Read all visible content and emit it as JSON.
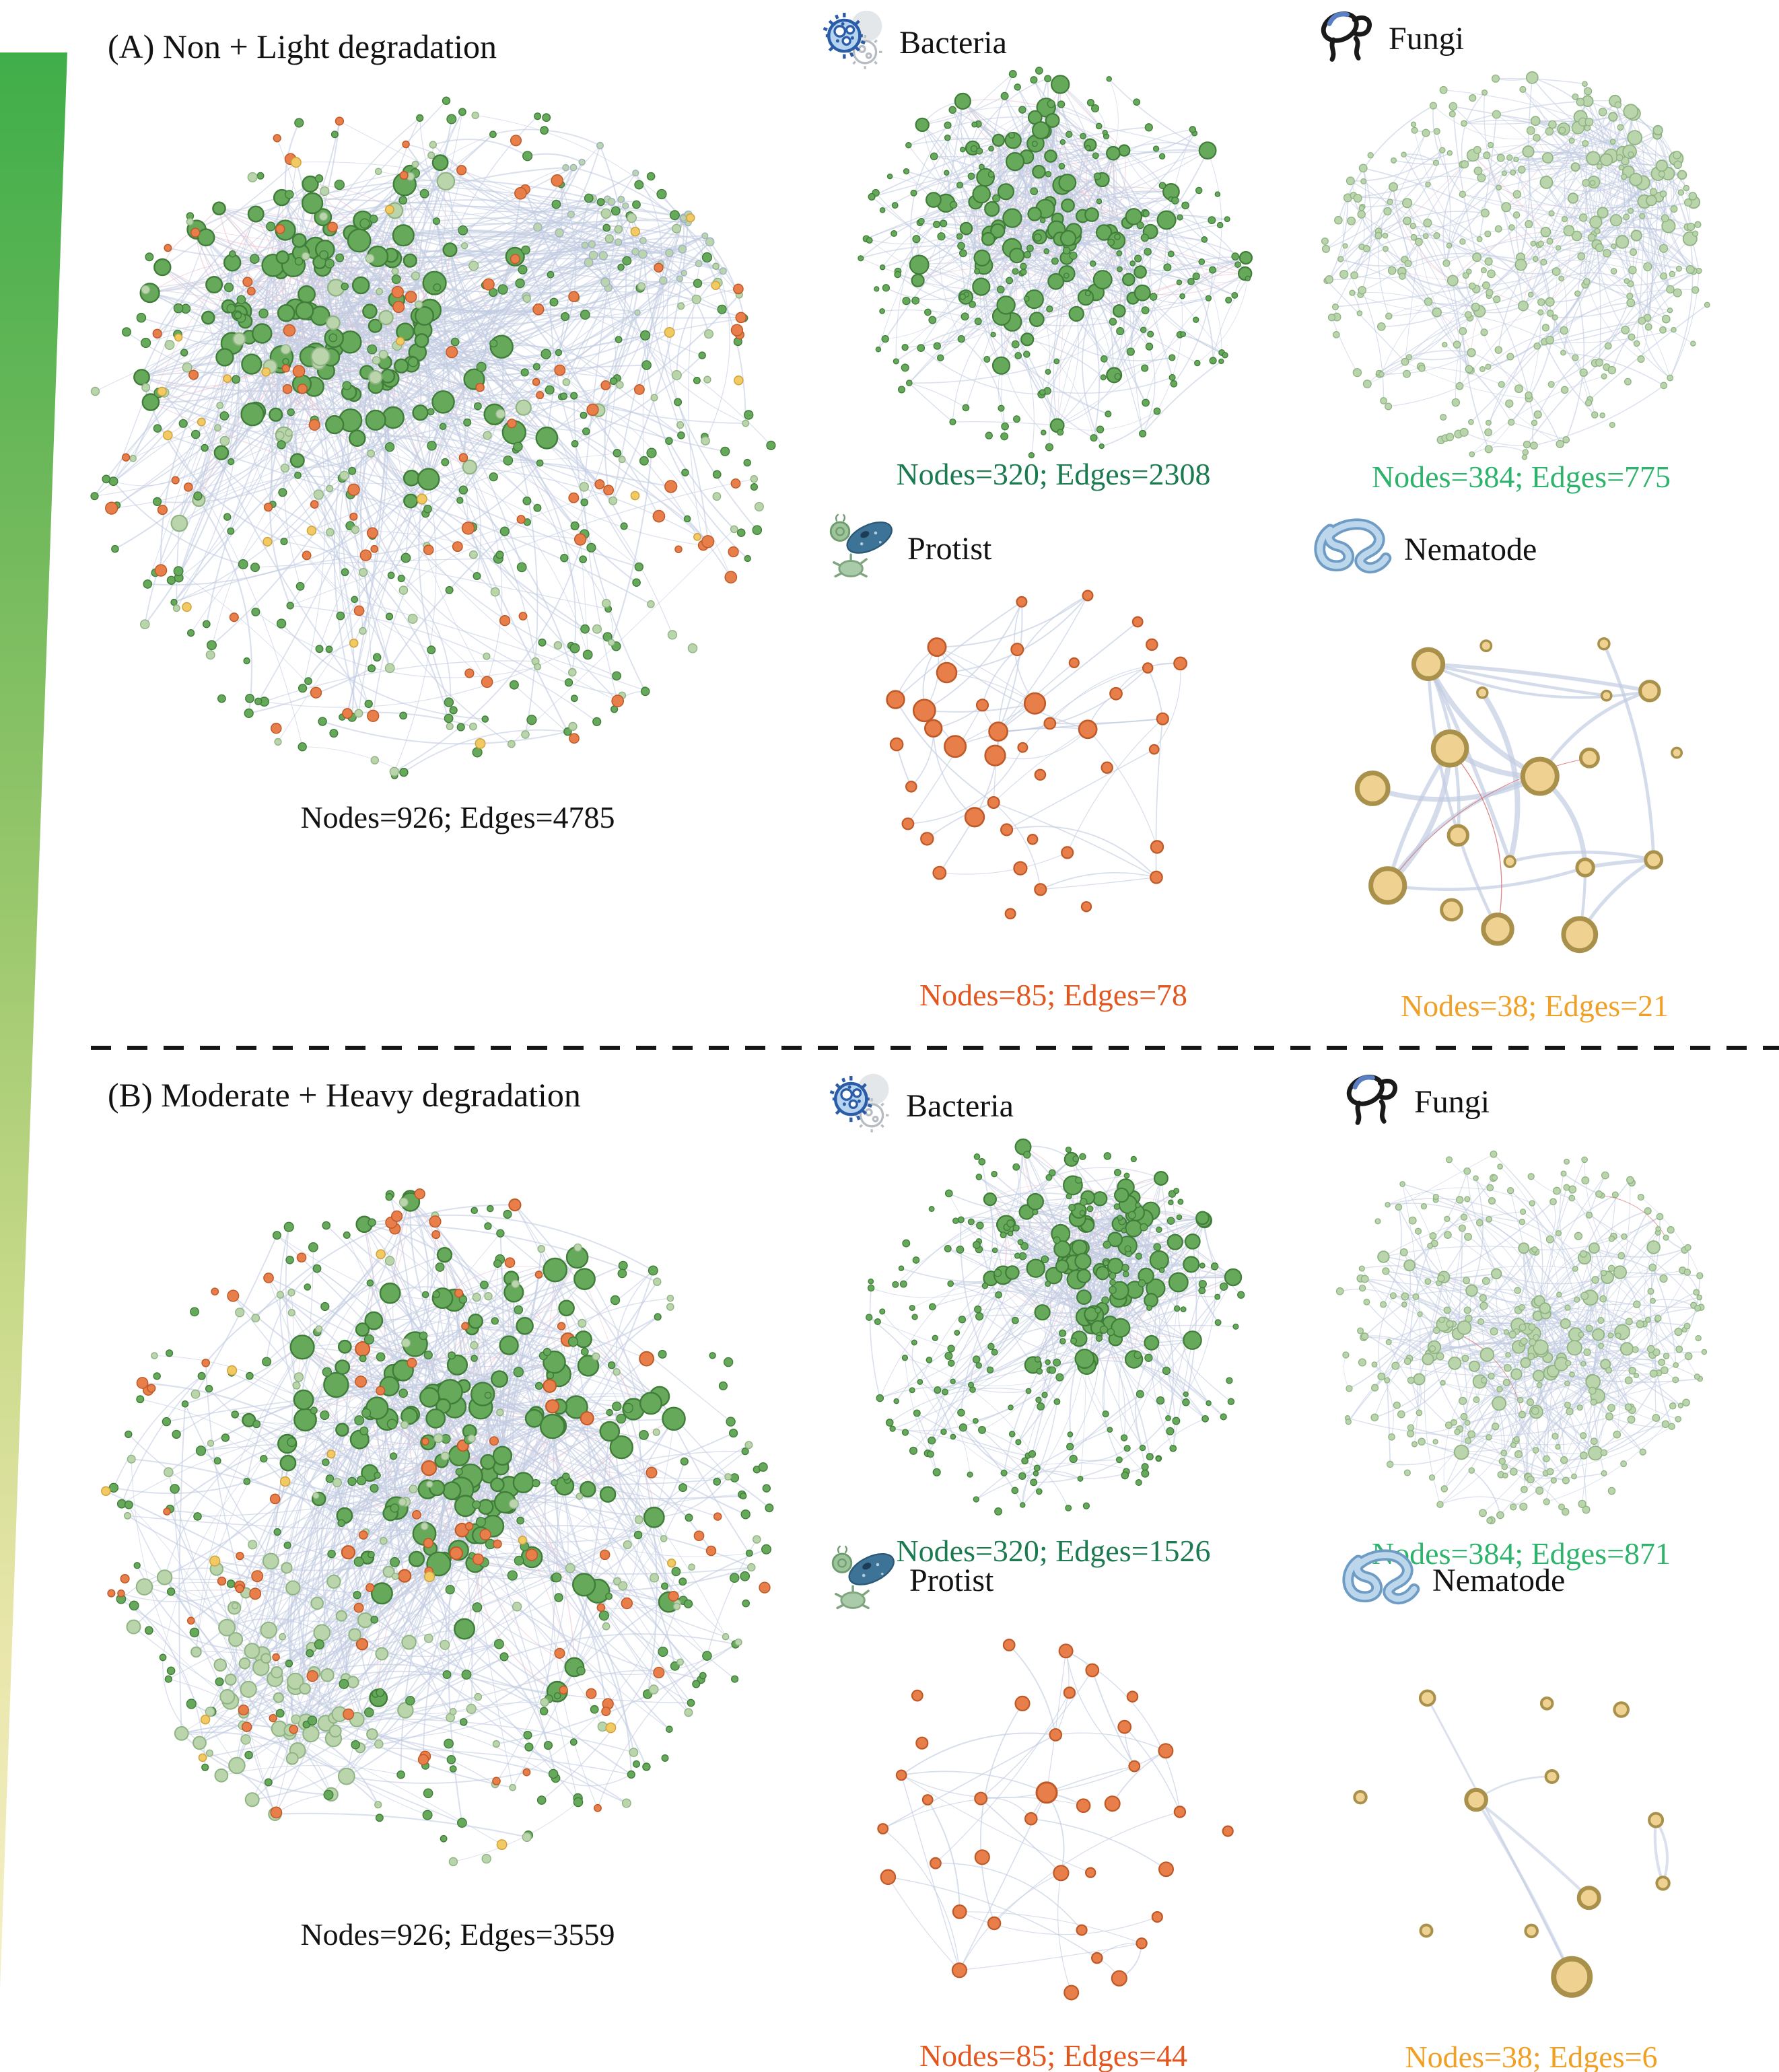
{
  "legend": {
    "meaning": "degradation-gradient",
    "top_color": "#3fae49",
    "bottom_color": "#f4efc6"
  },
  "palette": {
    "dark_green_fill": "#66a95b",
    "dark_green_stroke": "#3f7d38",
    "light_green_fill": "#bad5ac",
    "light_green_stroke": "#8fb383",
    "gray_green_stroke": "#9fb0c4",
    "orange_fill": "#e87e49",
    "orange_stroke": "#bf5a28",
    "yellow_fill": "#f2ca63",
    "yellow_stroke": "#cfa23c",
    "gold_fill": "#efd192",
    "gold_stroke": "#a9914c",
    "edge_positive": "#c2cce1",
    "edge_negative_pink": "#e9b7c9",
    "edge_negative_red": "#d97070"
  },
  "panel_a": {
    "title": "(A) Non + Light degradation",
    "main": {
      "caption": "Nodes=926; Edges=4785",
      "nodes": 926,
      "edges": 4785,
      "caption_color": "#111111"
    },
    "bacteria": {
      "label": "Bacteria",
      "caption": "Nodes=320; Edges=2308",
      "nodes": 320,
      "edges": 2308,
      "caption_color": "#1b7a4f"
    },
    "fungi": {
      "label": "Fungi",
      "caption": "Nodes=384; Edges=775",
      "nodes": 384,
      "edges": 775,
      "caption_color": "#2fb36c"
    },
    "protist": {
      "label": "Protist",
      "caption": "Nodes=85; Edges=78",
      "nodes": 85,
      "edges": 78,
      "caption_color": "#e2561f"
    },
    "nematode": {
      "label": "Nematode",
      "caption": "Nodes=38; Edges=21",
      "nodes": 38,
      "edges": 21,
      "caption_color": "#f0a125"
    }
  },
  "panel_b": {
    "title": "(B) Moderate + Heavy degradation",
    "main": {
      "caption": "Nodes=926; Edges=3559",
      "nodes": 926,
      "edges": 3559,
      "caption_color": "#111111"
    },
    "bacteria": {
      "label": "Bacteria",
      "caption": "Nodes=320; Edges=1526",
      "nodes": 320,
      "edges": 1526,
      "caption_color": "#1b7a4f"
    },
    "fungi": {
      "label": "Fungi",
      "caption": "Nodes=384; Edges=871",
      "nodes": 384,
      "edges": 871,
      "caption_color": "#2fb36c"
    },
    "protist": {
      "label": "Protist",
      "caption": "Nodes=85; Edges=44",
      "nodes": 85,
      "edges": 44,
      "caption_color": "#e2561f"
    },
    "nematode": {
      "label": "Nematode",
      "caption": "Nodes=38; Edges=6",
      "nodes": 38,
      "edges": 6,
      "caption_color": "#f0a125"
    }
  }
}
